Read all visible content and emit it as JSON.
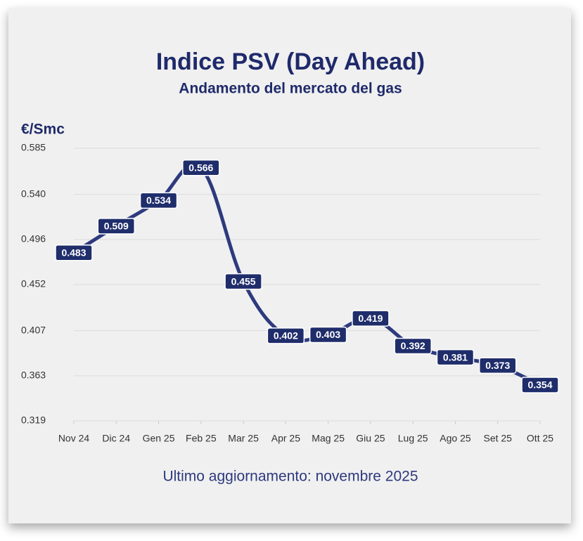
{
  "chart_data": {
    "type": "line",
    "title": "Indice PSV (Day Ahead)",
    "subtitle": "Andamento del mercato del gas",
    "y_label": "€/Smc",
    "footnote": "Ultimo aggiornamento: novembre 2025",
    "categories": [
      "Nov 24",
      "Dic 24",
      "Gen 25",
      "Feb 25",
      "Mar 25",
      "Apr 25",
      "Mag 25",
      "Giu 25",
      "Lug 25",
      "Ago 25",
      "Set 25",
      "Ott 25"
    ],
    "series": [
      {
        "name": "PSV",
        "color": "#2e3a7e",
        "values": [
          0.483,
          0.509,
          0.534,
          0.566,
          0.455,
          0.402,
          0.403,
          0.419,
          0.392,
          0.381,
          0.373,
          0.354
        ]
      }
    ],
    "ylim": [
      0.319,
      0.585
    ],
    "yticks": [
      0.319,
      0.363,
      0.407,
      0.452,
      0.496,
      {
        "value": 0.54,
        "label": "0.540"
      },
      0.585
    ],
    "grid": true
  }
}
